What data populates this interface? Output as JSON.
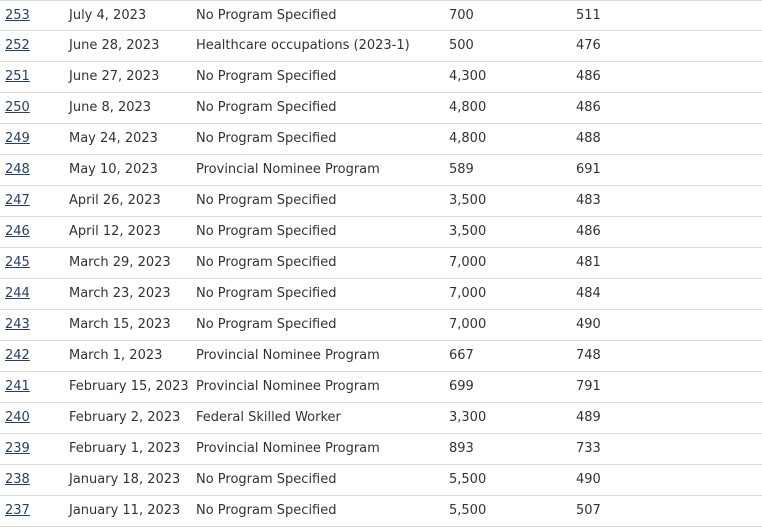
{
  "rounds_table": {
    "rows": [
      {
        "number": "253",
        "date": "July 4, 2023",
        "program": "No Program Specified",
        "invitations": "700",
        "crs": "511"
      },
      {
        "number": "252",
        "date": "June 28, 2023",
        "program": "Healthcare occupations (2023-1)",
        "invitations": "500",
        "crs": "476"
      },
      {
        "number": "251",
        "date": "June 27, 2023",
        "program": "No Program Specified",
        "invitations": "4,300",
        "crs": "486"
      },
      {
        "number": "250",
        "date": "June 8, 2023",
        "program": "No Program Specified",
        "invitations": "4,800",
        "crs": "486"
      },
      {
        "number": "249",
        "date": "May 24, 2023",
        "program": "No Program Specified",
        "invitations": "4,800",
        "crs": "488"
      },
      {
        "number": "248",
        "date": "May 10, 2023",
        "program": "Provincial Nominee Program",
        "invitations": "589",
        "crs": "691"
      },
      {
        "number": "247",
        "date": "April 26, 2023",
        "program": "No Program Specified",
        "invitations": "3,500",
        "crs": "483"
      },
      {
        "number": "246",
        "date": "April 12, 2023",
        "program": "No Program Specified",
        "invitations": "3,500",
        "crs": "486"
      },
      {
        "number": "245",
        "date": "March 29, 2023",
        "program": "No Program Specified",
        "invitations": "7,000",
        "crs": "481"
      },
      {
        "number": "244",
        "date": "March 23, 2023",
        "program": "No Program Specified",
        "invitations": "7,000",
        "crs": "484"
      },
      {
        "number": "243",
        "date": "March 15, 2023",
        "program": "No Program Specified",
        "invitations": "7,000",
        "crs": "490"
      },
      {
        "number": "242",
        "date": "March 1, 2023",
        "program": "Provincial Nominee Program",
        "invitations": "667",
        "crs": "748"
      },
      {
        "number": "241",
        "date": "February 15, 2023",
        "program": "Provincial Nominee Program",
        "invitations": "699",
        "crs": "791"
      },
      {
        "number": "240",
        "date": "February 2, 2023",
        "program": "Federal Skilled Worker",
        "invitations": "3,300",
        "crs": "489"
      },
      {
        "number": "239",
        "date": "February 1, 2023",
        "program": "Provincial Nominee Program",
        "invitations": "893",
        "crs": "733"
      },
      {
        "number": "238",
        "date": "January 18, 2023",
        "program": "No Program Specified",
        "invitations": "5,500",
        "crs": "490"
      },
      {
        "number": "237",
        "date": "January 11, 2023",
        "program": "No Program Specified",
        "invitations": "5,500",
        "crs": "507"
      }
    ]
  }
}
